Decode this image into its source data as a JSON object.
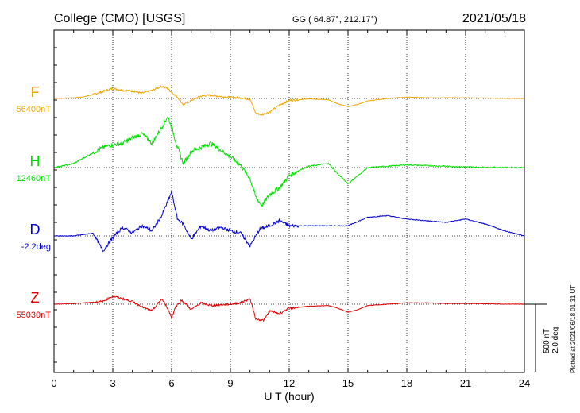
{
  "header": {
    "station": "College (CMO)  [USGS]",
    "coords": "GG ( 64.87°, 212.17°)",
    "date": "2021/05/18"
  },
  "side_note": "Plotted at 2021/06/18 01:31  UT",
  "colors": {
    "F": "#f0a800",
    "H": "#00e000",
    "D": "#0000cc",
    "Z": "#e00000",
    "grid": "#000000"
  },
  "chart_data": {
    "type": "line",
    "xlabel": "U T (hour)",
    "xlim": [
      0,
      24
    ],
    "xticks": [
      0,
      3,
      6,
      9,
      12,
      15,
      18,
      21,
      24
    ],
    "xtick_labels": [
      "0",
      "3",
      "6",
      "9",
      "12",
      "15",
      "18",
      "21",
      "24"
    ],
    "scale_bar": {
      "nT": "500 nT",
      "deg": "2.0 deg",
      "nT_value": 500
    },
    "series": [
      {
        "name": "F",
        "baseline_label": "56400nT",
        "x": [
          0,
          1,
          1.5,
          2,
          2.5,
          3,
          3.5,
          4,
          4.5,
          5,
          5.5,
          5.8,
          6,
          6.3,
          6.6,
          7,
          7.5,
          8,
          8.5,
          9,
          9.5,
          10,
          10.3,
          10.6,
          11,
          11.5,
          12,
          13,
          14,
          14.5,
          15,
          15.5,
          16,
          17,
          18,
          19,
          20,
          21,
          22,
          23,
          24
        ],
        "y": [
          0,
          5,
          12,
          30,
          52,
          75,
          60,
          55,
          40,
          60,
          90,
          75,
          45,
          10,
          -45,
          -15,
          18,
          25,
          15,
          8,
          5,
          -5,
          -110,
          -120,
          -100,
          -50,
          -15,
          -3,
          -10,
          -40,
          -60,
          -45,
          -18,
          0,
          10,
          5,
          5,
          5,
          3,
          1,
          0
        ]
      },
      {
        "name": "H",
        "baseline_label": "12460nT",
        "x": [
          0,
          1,
          1.5,
          2,
          2.5,
          3,
          3.5,
          4,
          4.5,
          5,
          5.5,
          5.8,
          6,
          6.3,
          6.6,
          7,
          7.5,
          8,
          8.5,
          9,
          9.5,
          10,
          10.3,
          10.6,
          11,
          11.5,
          12,
          12.5,
          13,
          14,
          14.5,
          15,
          15.5,
          16,
          17,
          18,
          19,
          20,
          21,
          22,
          23,
          24
        ],
        "y": [
          0,
          30,
          70,
          110,
          150,
          170,
          180,
          220,
          250,
          180,
          300,
          380,
          300,
          150,
          30,
          120,
          150,
          180,
          130,
          80,
          20,
          -80,
          -220,
          -280,
          -200,
          -150,
          -60,
          -20,
          10,
          30,
          -50,
          -120,
          -60,
          0,
          10,
          20,
          15,
          10,
          5,
          2,
          0,
          0
        ]
      },
      {
        "name": "D",
        "baseline_label": "-2.2deg",
        "x": [
          0,
          1,
          2,
          2.5,
          3,
          3.5,
          4,
          4.5,
          5,
          5.5,
          6,
          6.3,
          6.6,
          7,
          7.5,
          8,
          8.5,
          9,
          9.5,
          10,
          10.5,
          11,
          11.5,
          12,
          13,
          14,
          15,
          16,
          17,
          18,
          19,
          20,
          21,
          22,
          23,
          24
        ],
        "y": [
          0,
          0,
          0.08,
          -0.45,
          -0.05,
          0.25,
          0.1,
          0.3,
          0.15,
          0.6,
          1.3,
          0.5,
          0.35,
          -0.1,
          0.3,
          0.15,
          0.25,
          0.15,
          0.1,
          -0.3,
          0.2,
          0.3,
          0.45,
          0.3,
          0.3,
          0.3,
          0.3,
          0.55,
          0.6,
          0.5,
          0.45,
          0.4,
          0.5,
          0.35,
          0.15,
          0
        ]
      },
      {
        "name": "Z",
        "baseline_label": "55030nT",
        "x": [
          0,
          1,
          2,
          2.5,
          3,
          3.5,
          4,
          4.5,
          5,
          5.5,
          5.8,
          6,
          6.2,
          6.5,
          6.8,
          7,
          7.5,
          8,
          8.5,
          9,
          9.5,
          10,
          10.3,
          10.7,
          11,
          11.5,
          12,
          13,
          14,
          14.5,
          15,
          15.5,
          16,
          17,
          18,
          19,
          20,
          21,
          22,
          23,
          24
        ],
        "y": [
          0,
          5,
          15,
          20,
          60,
          40,
          20,
          -20,
          -50,
          40,
          -30,
          -100,
          -20,
          30,
          -10,
          -40,
          10,
          -10,
          -5,
          0,
          10,
          40,
          -110,
          -120,
          -50,
          -70,
          -30,
          -15,
          -10,
          -30,
          -60,
          -40,
          -10,
          0,
          10,
          10,
          5,
          5,
          3,
          1,
          0
        ]
      }
    ]
  }
}
